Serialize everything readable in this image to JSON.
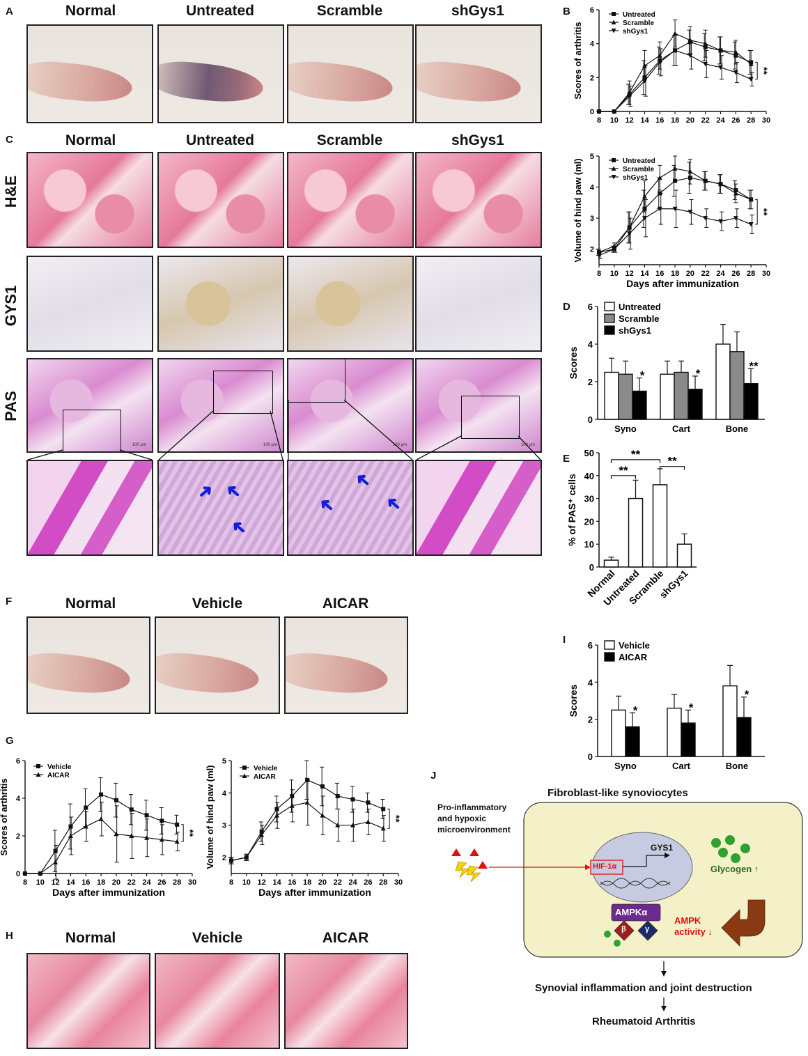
{
  "panels": {
    "A": "A",
    "B": "B",
    "C": "C",
    "D": "D",
    "E": "E",
    "F": "F",
    "G": "G",
    "H": "H",
    "I": "I",
    "J": "J"
  },
  "groups4": [
    "Normal",
    "Untreated",
    "Scramble",
    "shGys1"
  ],
  "groups3": [
    "Normal",
    "Vehicle",
    "AICAR"
  ],
  "row_labels": {
    "he": "H&E",
    "gys": "GYS1",
    "pas": "PAS"
  },
  "scale_bar": "100 μm",
  "colors": {
    "arrow": "#1020d8",
    "red_text": "#e01010",
    "green_text": "#2d6a1e",
    "panel_bg": "#f4f1c9"
  },
  "chart_data": [
    {
      "id": "B-top",
      "type": "line",
      "x": [
        8,
        10,
        12,
        14,
        16,
        18,
        20,
        22,
        24,
        26,
        28
      ],
      "xlim": [
        8,
        30
      ],
      "ylim": [
        0,
        6
      ],
      "xticks": [
        8,
        10,
        12,
        14,
        16,
        18,
        20,
        22,
        24,
        26,
        28,
        30
      ],
      "yticks": [
        0,
        2,
        4,
        6
      ],
      "ylabel": "Scores of arthritis",
      "xlabel": "",
      "series": [
        {
          "name": "Untreated",
          "marker": "square",
          "values": [
            0,
            0,
            1.0,
            2.0,
            3.0,
            3.6,
            4.1,
            3.8,
            3.6,
            3.3,
            2.9
          ],
          "err": [
            0,
            0,
            0.6,
            1.0,
            0.8,
            0.9,
            0.7,
            0.8,
            0.8,
            0.8,
            0.7
          ]
        },
        {
          "name": "Scramble",
          "marker": "triangle-up",
          "values": [
            0,
            0,
            1.1,
            2.7,
            3.3,
            4.6,
            4.2,
            4.0,
            3.6,
            3.5,
            2.8
          ],
          "err": [
            0,
            0,
            0.7,
            0.9,
            0.8,
            0.8,
            0.8,
            0.8,
            0.8,
            0.7,
            0.8
          ]
        },
        {
          "name": "shGys1",
          "marker": "triangle-down",
          "values": [
            0,
            0,
            0.9,
            1.8,
            2.9,
            3.6,
            3.3,
            2.8,
            2.6,
            2.3,
            1.9
          ],
          "err": [
            0,
            0,
            0.6,
            0.9,
            0.8,
            0.9,
            0.8,
            0.8,
            0.7,
            0.6,
            0.4
          ]
        }
      ],
      "annotation": "**"
    },
    {
      "id": "B-bottom",
      "type": "line",
      "x": [
        8,
        10,
        12,
        14,
        16,
        18,
        20,
        22,
        24,
        26,
        28
      ],
      "xlim": [
        8,
        30
      ],
      "ylim": [
        1.5,
        5
      ],
      "xticks": [
        8,
        10,
        12,
        14,
        16,
        18,
        20,
        22,
        24,
        26,
        28,
        30
      ],
      "yticks": [
        2,
        3,
        4,
        5
      ],
      "ylabel": "Volume of hind paw (ml)",
      "xlabel": "Days after immunization",
      "series": [
        {
          "name": "Untreated",
          "marker": "square",
          "values": [
            1.9,
            2.0,
            2.7,
            3.3,
            3.8,
            4.2,
            4.3,
            4.2,
            4.1,
            3.9,
            3.6
          ],
          "err": [
            0.1,
            0.1,
            0.5,
            0.6,
            0.5,
            0.5,
            0.5,
            0.3,
            0.3,
            0.3,
            0.3
          ]
        },
        {
          "name": "Scramble",
          "marker": "triangle-up",
          "values": [
            1.9,
            2.1,
            2.7,
            3.7,
            4.3,
            4.6,
            4.5,
            4.2,
            4.1,
            3.8,
            3.6
          ],
          "err": [
            0.1,
            0.1,
            0.5,
            0.5,
            0.4,
            0.4,
            0.4,
            0.3,
            0.3,
            0.3,
            0.3
          ]
        },
        {
          "name": "shGys1",
          "marker": "triangle-down",
          "values": [
            1.8,
            2.0,
            2.5,
            3.0,
            3.3,
            3.3,
            3.2,
            3.0,
            2.9,
            3.0,
            2.8
          ],
          "err": [
            0.1,
            0.1,
            0.5,
            0.6,
            0.5,
            0.6,
            0.4,
            0.3,
            0.3,
            0.3,
            0.3
          ]
        }
      ],
      "annotation": "**"
    },
    {
      "id": "D",
      "type": "bar",
      "categories": [
        "Syno",
        "Cart",
        "Bone"
      ],
      "ylim": [
        0,
        6
      ],
      "yticks": [
        0,
        2,
        4,
        6
      ],
      "ylabel": "Scores",
      "series": [
        {
          "name": "Untreated",
          "fill": "#ffffff",
          "values": [
            2.5,
            2.4,
            4.0
          ],
          "err": [
            0.75,
            0.7,
            1.05
          ]
        },
        {
          "name": "Scramble",
          "fill": "#8a8a8a",
          "values": [
            2.4,
            2.5,
            3.6
          ],
          "err": [
            0.7,
            0.6,
            1.05
          ]
        },
        {
          "name": "shGys1",
          "fill": "#000000",
          "values": [
            1.5,
            1.6,
            1.9
          ],
          "err": [
            0.7,
            0.7,
            0.8
          ]
        }
      ],
      "sig": [
        "*",
        "*",
        "**"
      ]
    },
    {
      "id": "E",
      "type": "bar",
      "categories": [
        "Normal",
        "Untreated",
        "Scramble",
        "shGys1"
      ],
      "ylim": [
        0,
        50
      ],
      "yticks": [
        0,
        10,
        20,
        30,
        40,
        50
      ],
      "ylabel": "% of PAS⁺ cells",
      "values": [
        3,
        30,
        36,
        10
      ],
      "err": [
        1.3,
        8,
        7,
        4.5
      ],
      "sig_brackets": [
        {
          "from": 0,
          "to": 1,
          "label": "**"
        },
        {
          "from": 0,
          "to": 2,
          "label": "**"
        },
        {
          "from": 2,
          "to": 3,
          "label": "**"
        }
      ]
    },
    {
      "id": "G-left",
      "type": "line",
      "x": [
        8,
        10,
        12,
        14,
        16,
        18,
        20,
        22,
        24,
        26,
        28
      ],
      "xlim": [
        8,
        30
      ],
      "ylim": [
        0,
        6
      ],
      "xticks": [
        8,
        10,
        12,
        14,
        16,
        18,
        20,
        22,
        24,
        26,
        28,
        30
      ],
      "yticks": [
        0,
        2,
        4,
        6
      ],
      "ylabel": "Scores of arthritis",
      "xlabel": "Days after immunization",
      "series": [
        {
          "name": "Vehicle",
          "marker": "square",
          "values": [
            0,
            0,
            1.2,
            2.5,
            3.5,
            4.2,
            3.9,
            3.4,
            3.1,
            2.8,
            2.6
          ],
          "err": [
            0,
            0,
            1.1,
            1.2,
            1.0,
            0.9,
            0.9,
            0.8,
            0.8,
            0.7,
            0.5
          ]
        },
        {
          "name": "AICAR",
          "marker": "triangle-up",
          "values": [
            0,
            0,
            0.6,
            2.0,
            2.5,
            2.9,
            2.1,
            2.0,
            1.9,
            1.8,
            1.7
          ],
          "err": [
            0,
            0,
            0.9,
            1.0,
            0.8,
            0.9,
            1.5,
            1.2,
            1.0,
            0.8,
            0.5
          ]
        }
      ],
      "annotation": "**"
    },
    {
      "id": "G-right",
      "type": "line",
      "x": [
        8,
        10,
        12,
        14,
        16,
        18,
        20,
        22,
        24,
        26,
        28
      ],
      "xlim": [
        8,
        30
      ],
      "ylim": [
        1.5,
        5
      ],
      "xticks": [
        8,
        10,
        12,
        14,
        16,
        18,
        20,
        22,
        24,
        26,
        28,
        30
      ],
      "yticks": [
        2,
        3,
        4,
        5
      ],
      "ylabel": "Volume of hind paw (ml)",
      "xlabel": "Days after immunization",
      "series": [
        {
          "name": "Vehicle",
          "marker": "square",
          "values": [
            1.9,
            2.0,
            2.8,
            3.5,
            3.9,
            4.4,
            4.2,
            3.9,
            3.8,
            3.7,
            3.5
          ],
          "err": [
            0.1,
            0.1,
            0.3,
            0.4,
            0.5,
            0.6,
            0.6,
            0.4,
            0.4,
            0.3,
            0.3
          ]
        },
        {
          "name": "AICAR",
          "marker": "triangle-up",
          "values": [
            1.9,
            2.0,
            2.7,
            3.3,
            3.6,
            3.7,
            3.3,
            3.0,
            3.0,
            3.1,
            2.9
          ],
          "err": [
            0.1,
            0.1,
            0.3,
            0.4,
            0.5,
            0.7,
            0.6,
            0.5,
            0.5,
            0.4,
            0.4
          ]
        }
      ],
      "annotation": "**"
    },
    {
      "id": "I",
      "type": "bar",
      "categories": [
        "Syno",
        "Cart",
        "Bone"
      ],
      "ylim": [
        0,
        6
      ],
      "yticks": [
        0,
        2,
        4,
        6
      ],
      "ylabel": "Scores",
      "series": [
        {
          "name": "Vehicle",
          "fill": "#ffffff",
          "values": [
            2.5,
            2.6,
            3.8
          ],
          "err": [
            0.75,
            0.75,
            1.1
          ]
        },
        {
          "name": "AICAR",
          "fill": "#000000",
          "values": [
            1.6,
            1.8,
            2.1
          ],
          "err": [
            0.75,
            0.7,
            1.1
          ]
        }
      ],
      "sig": [
        "*",
        "*",
        "*"
      ]
    }
  ],
  "diagram_j": {
    "title": "Fibroblast-like synoviocytes",
    "stimulus_line1": "Pro-inflammatory",
    "stimulus_line2": "and hypoxic",
    "stimulus_line3": "microenvironment",
    "hif": "HIF-1α",
    "gys1": "GYS1",
    "glycogen": "Glycogen ↑",
    "ampk_alpha": "AMPKα",
    "beta": "β",
    "gamma": "γ",
    "ampk_activity_1": "AMPK",
    "ampk_activity_2": "activity ↓",
    "outcome1": "Synovial inflammation and joint destruction",
    "outcome2": "Rheumatoid Arthritis"
  }
}
